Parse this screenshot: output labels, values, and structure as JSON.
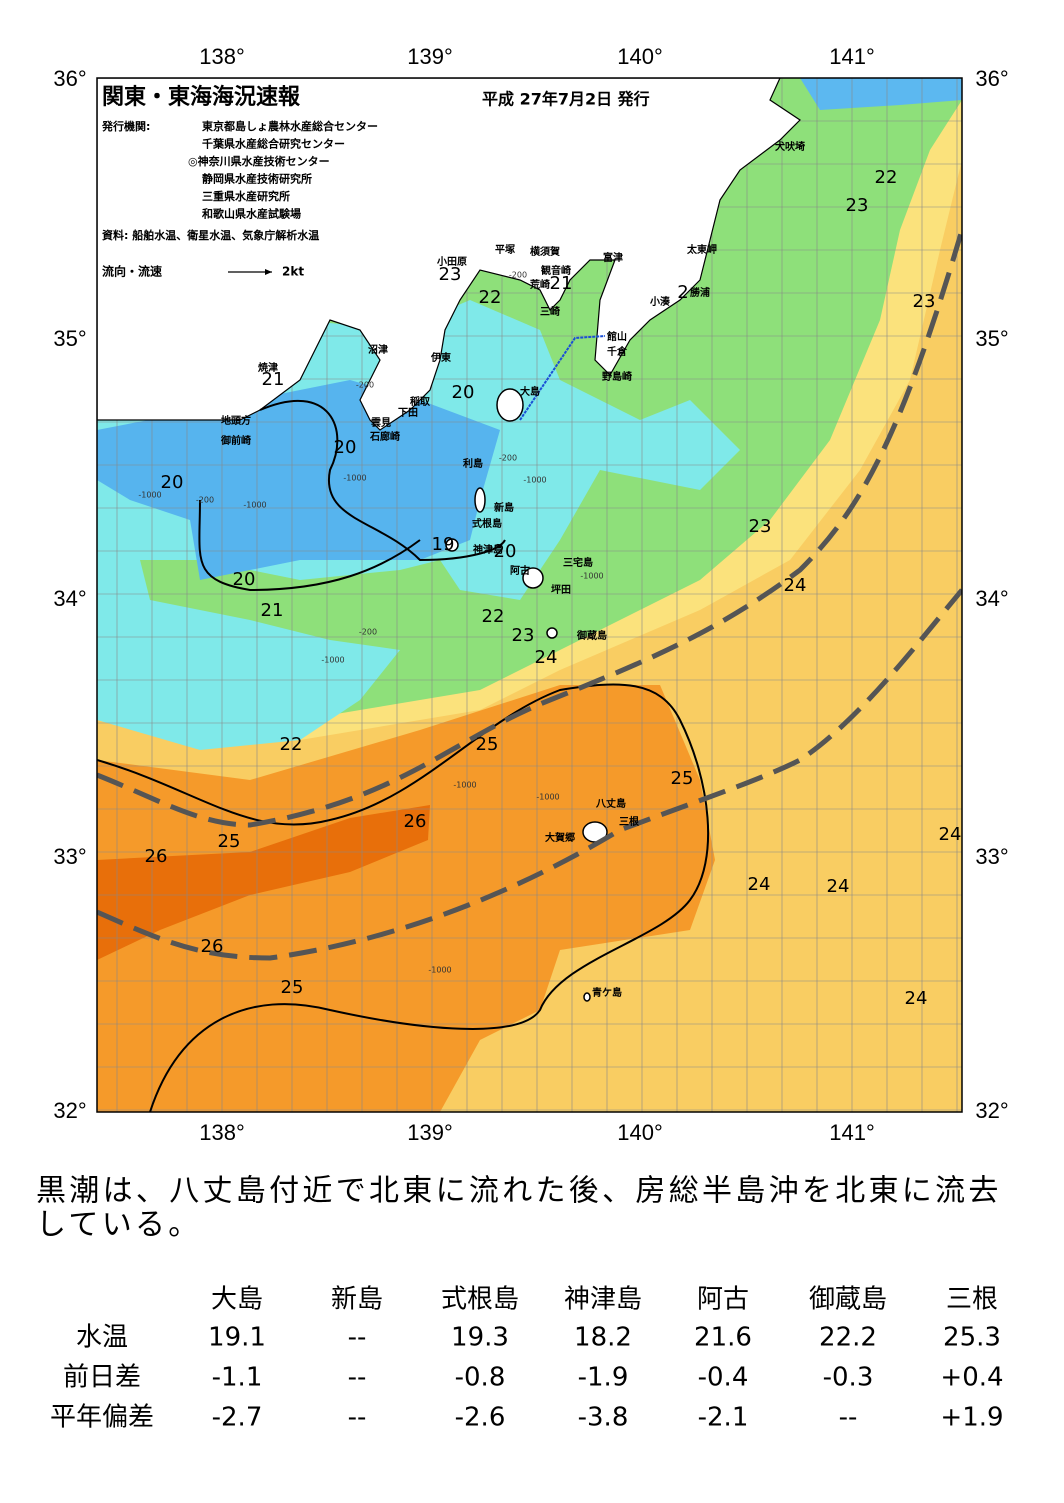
{
  "header": {
    "title": "関東・東海海況速報",
    "date": "平成 27年7月2日 発行",
    "publisher_label": "発行機関:",
    "publishers": [
      "東京都島しょ農林水産総合センター",
      "千葉県水産総合研究センター",
      "◎神奈川県水産技術センター",
      "静岡県水産技術研究所",
      "三重県水産研究所",
      "和歌山県水産試験場"
    ],
    "sources": "資料: 船舶水温、衛星水温、気象庁解析水温",
    "legend": "流向・流速",
    "legend_scale": "2kt"
  },
  "axes": {
    "longitudes": [
      "138°",
      "139°",
      "140°",
      "141°"
    ],
    "latitudes": [
      "36°",
      "35°",
      "34°",
      "33°",
      "32°"
    ]
  },
  "places": [
    "犬吠埼",
    "太東岬",
    "勝浦",
    "小湊",
    "館山",
    "千倉",
    "野島崎",
    "富津",
    "観音崎",
    "横須賀",
    "平塚",
    "荒崎",
    "三崎",
    "小田原",
    "沼津",
    "伊東",
    "焼津",
    "稲取",
    "下田",
    "雲見",
    "石廊崎",
    "地頭方",
    "御前崎",
    "大島",
    "利島",
    "新島",
    "式根島",
    "神津島",
    "阿古",
    "三宅島",
    "坪田",
    "御蔵島",
    "八丈島",
    "三根",
    "大賀郷",
    "青ケ島"
  ],
  "isotherm_labels": [
    "22",
    "23",
    "23",
    "2",
    "21",
    "22",
    "23",
    "21",
    "20",
    "20",
    "20",
    "19",
    "20",
    "23",
    "24",
    "20",
    "21",
    "22",
    "23",
    "24",
    "22",
    "25",
    "25",
    "26",
    "25",
    "26",
    "24",
    "24",
    "24",
    "26",
    "25",
    "24"
  ],
  "depth_labels": [
    "-200",
    "-1000",
    "-200",
    "-1000",
    "-200",
    "-1000",
    "-200",
    "-1000",
    "-1000",
    "-1000",
    "-200",
    "-1000",
    "-1000",
    "-1000"
  ],
  "summary": [
    "黒潮は、八丈島付近で北東に流れた後、房総半島沖を北東に流去",
    "している。"
  ],
  "table": {
    "header": [
      "大島",
      "新島",
      "式根島",
      "神津島",
      "阿古",
      "御蔵島",
      "三根"
    ],
    "rows": [
      [
        "水温",
        "19.1",
        "--",
        "19.3",
        "18.2",
        "21.6",
        "22.2",
        "25.3"
      ],
      [
        "前日差",
        "-1.1",
        "--",
        "-0.8",
        "-1.9",
        "-0.4",
        "-0.3",
        "+0.4"
      ],
      [
        "平年偏差",
        "-2.7",
        "--",
        "-2.6",
        "-3.8",
        "-2.1",
        "--",
        "+1.9"
      ]
    ]
  }
}
